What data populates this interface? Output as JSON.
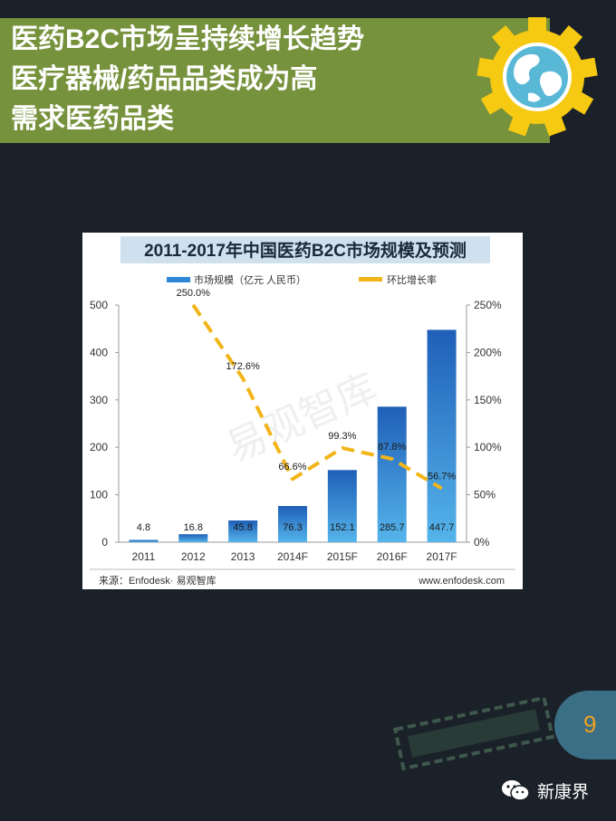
{
  "slide": {
    "title_lines": [
      "医药B2C市场呈持续增长趋势",
      "医疗器械/药品品类成为高",
      "需求医药品类"
    ],
    "page_number": "9",
    "brand": "新康界"
  },
  "colors": {
    "title_band": "#77923c",
    "background": "#1b2129",
    "bar": "#2e86d6",
    "line": "#f2b519",
    "page_number": "#f0a11d"
  },
  "chart_data": {
    "type": "bar",
    "title": "2011-2017年中国医药B2C市场规模及预测",
    "categories": [
      "2011",
      "2012",
      "2013",
      "2014F",
      "2015F",
      "2016F",
      "2017F"
    ],
    "series": [
      {
        "name": "市场规模（亿元 人民币）",
        "type": "bar",
        "axis": "left",
        "values": [
          4.8,
          16.8,
          45.8,
          76.3,
          152.1,
          285.7,
          447.7
        ],
        "labels": [
          "4.8",
          "16.8",
          "45.8",
          "76.3",
          "152.1",
          "285.7",
          "447.7"
        ]
      },
      {
        "name": "环比增长率",
        "type": "line",
        "axis": "right",
        "values": [
          null,
          250.0,
          172.6,
          66.6,
          99.3,
          87.8,
          56.7
        ],
        "labels": [
          "",
          "250.0%",
          "172.6%",
          "66.6%",
          "99.3%",
          "87.8%",
          "56.7%"
        ]
      }
    ],
    "y_left": {
      "min": 0,
      "max": 500,
      "ticks": [
        "0",
        "100",
        "200",
        "300",
        "400",
        "500"
      ]
    },
    "y_right": {
      "min": 0,
      "max": 250,
      "ticks": [
        "0%",
        "50%",
        "100%",
        "150%",
        "200%",
        "250%"
      ]
    },
    "legend_position": "top",
    "grid": false,
    "watermark": "易观智库",
    "source": "来源：Enfodesk· 易观智库",
    "website": "www.enfodesk.com"
  }
}
